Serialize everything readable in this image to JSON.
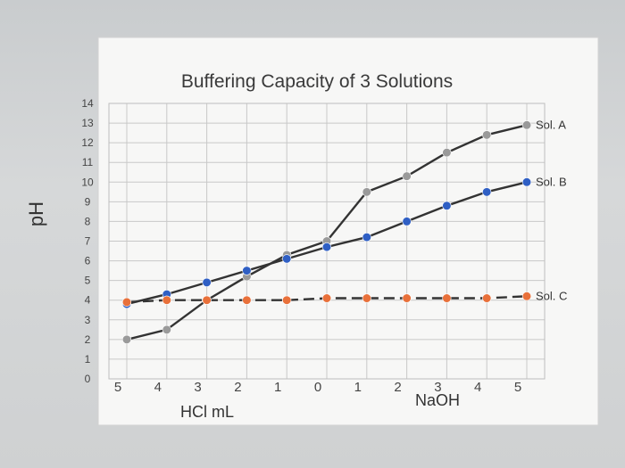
{
  "chart_data": {
    "type": "line",
    "title": "Buffering Capacity of 3 Solutions",
    "ylabel": "pH",
    "xlabel_left": "HCl mL",
    "xlabel_right": "NaOH",
    "x_tick_labels": [
      "5",
      "4",
      "3",
      "2",
      "1",
      "0",
      "1",
      "2",
      "3",
      "4",
      "5"
    ],
    "y_ticks": [
      "0",
      "1",
      "2",
      "3",
      "4",
      "5",
      "6",
      "7",
      "8",
      "9",
      "10",
      "11",
      "12",
      "13",
      "14"
    ],
    "ylim": [
      0,
      14
    ],
    "grid": true,
    "legend_placement": "right, at end of each line",
    "series": [
      {
        "name": "Sol. A",
        "color": "#9a9a9a",
        "line_color": "#333333",
        "dashed": false,
        "values": [
          2.0,
          2.5,
          4.0,
          5.2,
          6.3,
          7.0,
          9.5,
          10.3,
          11.5,
          12.4,
          12.9
        ]
      },
      {
        "name": "Sol. B",
        "color": "#2f5fc4",
        "line_color": "#333333",
        "dashed": false,
        "values": [
          3.8,
          4.3,
          4.9,
          5.5,
          6.1,
          6.7,
          7.2,
          8.0,
          8.8,
          9.5,
          10.0
        ]
      },
      {
        "name": "Sol. C",
        "color": "#e8703a",
        "line_color": "#333333",
        "dashed": true,
        "values": [
          3.9,
          4.0,
          4.0,
          4.0,
          4.0,
          4.1,
          4.1,
          4.1,
          4.1,
          4.1,
          4.2
        ]
      }
    ]
  }
}
